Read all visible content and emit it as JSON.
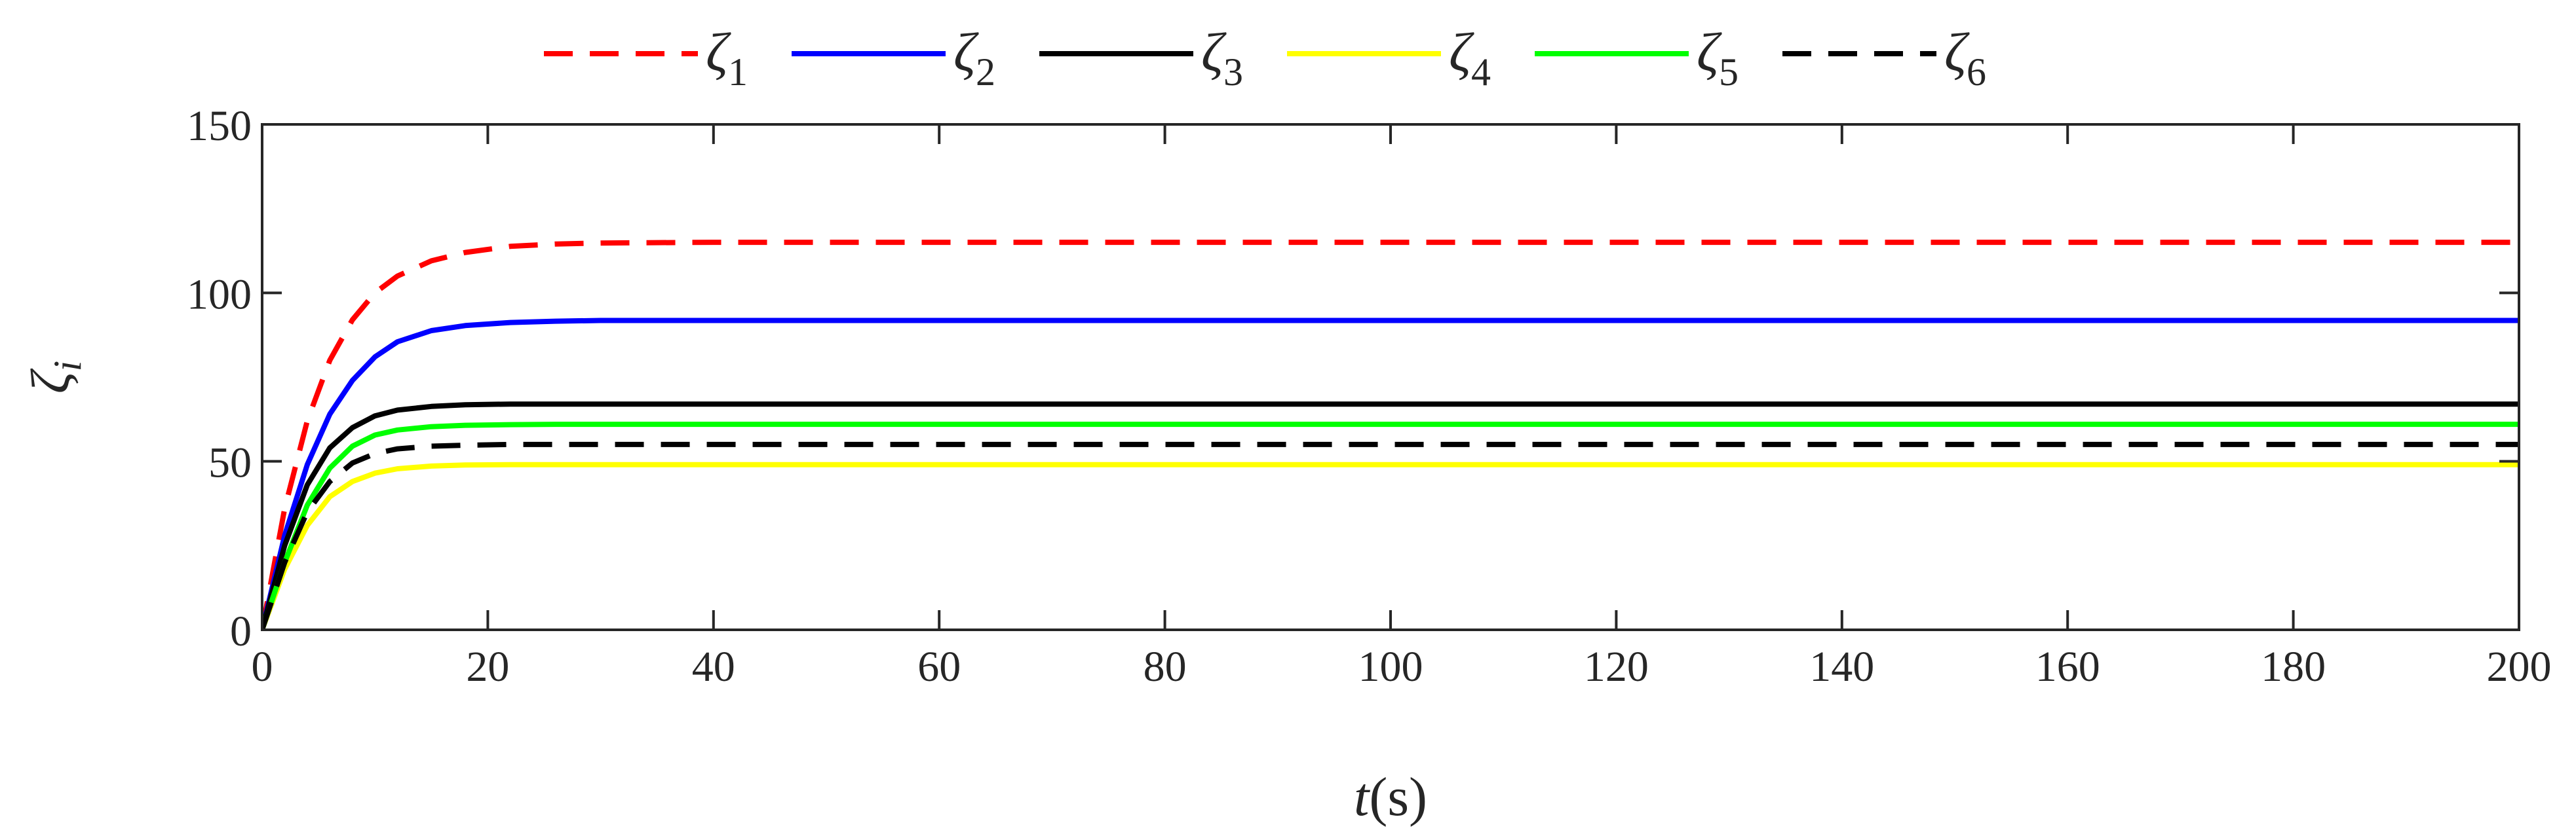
{
  "chart_data": {
    "type": "line",
    "title": "",
    "xlabel": {
      "var": "t",
      "unit": "(s)"
    },
    "ylabel": {
      "var": "ζ",
      "sub": "i"
    },
    "xlim": [
      0,
      200
    ],
    "ylim": [
      0,
      150
    ],
    "xticks": [
      0,
      20,
      40,
      60,
      80,
      100,
      120,
      140,
      160,
      180,
      200
    ],
    "yticks": [
      0,
      50,
      100,
      150
    ],
    "grid": false,
    "legend_position": "top-outside",
    "legend_orientation": "horizontal",
    "series": [
      {
        "name": "ζ",
        "sub": "1",
        "color": "#ff0000",
        "dash": "dashed",
        "x": [
          0,
          2,
          4,
          6,
          8,
          10,
          12,
          15,
          18,
          22,
          26,
          30,
          40,
          60,
          100,
          150,
          200
        ],
        "y": [
          0,
          36,
          62,
          80,
          92,
          100,
          105,
          109.5,
          112,
          113.8,
          114.5,
          114.8,
          115,
          115,
          115,
          115,
          115
        ]
      },
      {
        "name": "ζ",
        "sub": "2",
        "color": "#0000ff",
        "dash": "solid",
        "x": [
          0,
          2,
          4,
          6,
          8,
          10,
          12,
          15,
          18,
          22,
          26,
          30,
          40,
          60,
          100,
          150,
          200
        ],
        "y": [
          0,
          28,
          49,
          64,
          74,
          81,
          85.5,
          88.8,
          90.3,
          91.2,
          91.6,
          91.8,
          91.8,
          91.8,
          91.8,
          91.8,
          91.8
        ]
      },
      {
        "name": "ζ",
        "sub": "3",
        "color": "#000000",
        "dash": "solid",
        "x": [
          0,
          2,
          4,
          6,
          8,
          10,
          12,
          15,
          18,
          22,
          26,
          30,
          40,
          60,
          100,
          150,
          200
        ],
        "y": [
          0,
          25,
          43,
          54,
          60,
          63.5,
          65.2,
          66.3,
          66.8,
          67,
          67,
          67,
          67,
          67,
          67,
          67,
          67
        ]
      },
      {
        "name": "ζ",
        "sub": "4",
        "color": "#ffff00",
        "dash": "solid",
        "x": [
          0,
          2,
          4,
          6,
          8,
          10,
          12,
          15,
          18,
          22,
          26,
          30,
          40,
          60,
          100,
          150,
          200
        ],
        "y": [
          0,
          18,
          31,
          39.5,
          44,
          46.5,
          47.8,
          48.6,
          48.9,
          49,
          49,
          49,
          49,
          49,
          49,
          49,
          49
        ]
      },
      {
        "name": "ζ",
        "sub": "5",
        "color": "#00ff00",
        "dash": "solid",
        "x": [
          0,
          2,
          4,
          6,
          8,
          10,
          12,
          15,
          18,
          22,
          26,
          30,
          40,
          60,
          100,
          150,
          200
        ],
        "y": [
          0,
          20,
          37,
          48,
          54.5,
          57.8,
          59.3,
          60.3,
          60.7,
          60.9,
          61,
          61,
          61,
          61,
          61,
          61,
          61
        ]
      },
      {
        "name": "ζ",
        "sub": "6",
        "color": "#000000",
        "dash": "dashed",
        "x": [
          0,
          2,
          4,
          6,
          8,
          10,
          12,
          15,
          18,
          22,
          26,
          30,
          40,
          60,
          100,
          150,
          200
        ],
        "y": [
          0,
          20,
          35,
          44,
          49.5,
          52.3,
          53.7,
          54.5,
          54.8,
          55,
          55,
          55,
          55,
          55,
          55,
          55,
          55
        ]
      }
    ]
  }
}
